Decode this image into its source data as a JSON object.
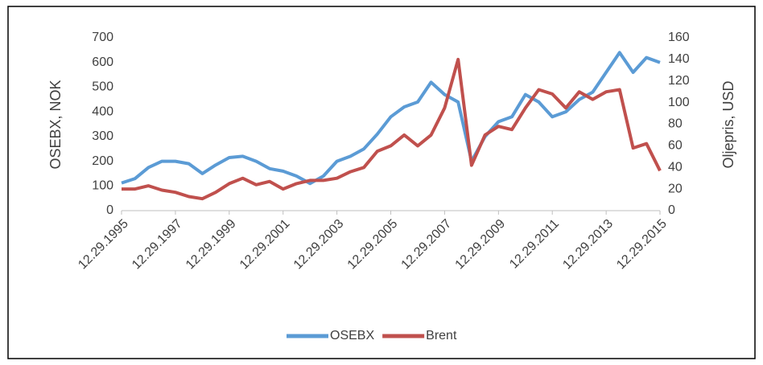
{
  "chart_data": {
    "type": "line",
    "y_label": "OSEBX, NOK",
    "y2_label": "Oljepris, USD",
    "x": [
      "12.29.1995",
      "06.29.1996",
      "12.29.1996",
      "06.29.1997",
      "12.29.1997",
      "06.29.1998",
      "12.29.1998",
      "06.29.1999",
      "12.29.1999",
      "06.29.2000",
      "12.29.2000",
      "06.29.2001",
      "12.29.2001",
      "06.29.2002",
      "12.29.2002",
      "06.29.2003",
      "12.29.2003",
      "06.29.2004",
      "12.29.2004",
      "06.29.2005",
      "12.29.2005",
      "06.29.2006",
      "12.29.2006",
      "06.29.2007",
      "12.29.2007",
      "06.29.2008",
      "12.29.2008",
      "06.29.2009",
      "12.29.2009",
      "06.29.2010",
      "12.29.2010",
      "06.29.2011",
      "12.29.2011",
      "06.29.2012",
      "12.29.2012",
      "06.29.2013",
      "12.29.2013",
      "06.29.2014",
      "12.29.2014",
      "06.29.2015",
      "12.29.2015"
    ],
    "series": [
      {
        "name": "OSEBX",
        "color": "#5b9bd5",
        "axis": "y",
        "values": [
          112,
          130,
          175,
          200,
          200,
          190,
          150,
          185,
          215,
          220,
          200,
          170,
          160,
          140,
          110,
          140,
          200,
          220,
          250,
          310,
          380,
          420,
          440,
          520,
          470,
          440,
          200,
          300,
          360,
          380,
          470,
          440,
          380,
          400,
          450,
          480,
          560,
          640,
          560,
          620,
          600
        ]
      },
      {
        "name": "Brent",
        "color": "#c0504d",
        "axis": "y2",
        "values": [
          20,
          20,
          23,
          19,
          17,
          13,
          11,
          17,
          25,
          30,
          24,
          27,
          20,
          25,
          28,
          28,
          30,
          36,
          40,
          55,
          60,
          70,
          60,
          70,
          95,
          140,
          42,
          70,
          78,
          75,
          95,
          112,
          108,
          95,
          110,
          103,
          110,
          112,
          58,
          62,
          37
        ]
      }
    ],
    "xlim": [
      "12.29.1995",
      "12.29.2015"
    ],
    "xticks": [
      "12.29.1995",
      "12.29.1997",
      "12.29.1999",
      "12.29.2001",
      "12.29.2003",
      "12.29.2005",
      "12.29.2007",
      "12.29.2009",
      "12.29.2011",
      "12.29.2013",
      "12.29.2015"
    ],
    "ylim": [
      0,
      700
    ],
    "yticks": [
      0,
      100,
      200,
      300,
      400,
      500,
      600,
      700
    ],
    "y2lim": [
      0,
      160
    ],
    "y2ticks": [
      0,
      20,
      40,
      60,
      80,
      100,
      120,
      140,
      160
    ],
    "legend": "bottom"
  }
}
